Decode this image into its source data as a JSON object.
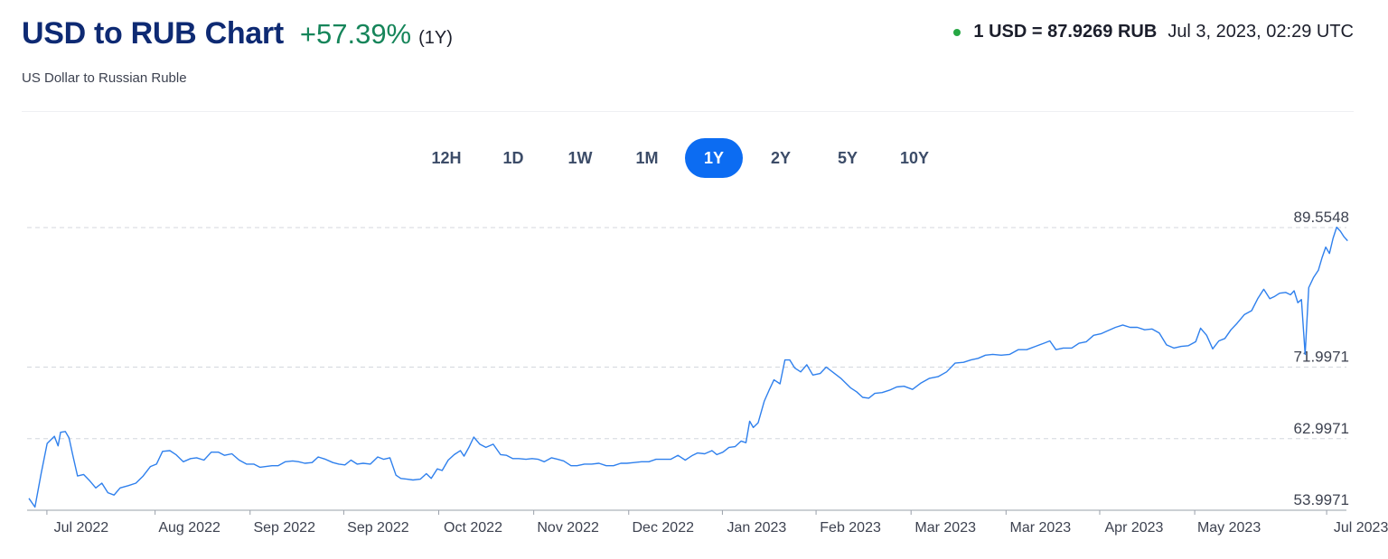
{
  "header": {
    "title": "USD to RUB Chart",
    "change": "+57.39%",
    "period": "(1Y)",
    "subtitle": "US Dollar to Russian Ruble",
    "rate_value": "1 USD = 87.9269 RUB",
    "rate_time": "Jul 3, 2023, 02:29 UTC"
  },
  "ranges": [
    {
      "label": "12H",
      "active": false
    },
    {
      "label": "1D",
      "active": false
    },
    {
      "label": "1W",
      "active": false
    },
    {
      "label": "1M",
      "active": false
    },
    {
      "label": "1Y",
      "active": true
    },
    {
      "label": "2Y",
      "active": false
    },
    {
      "label": "5Y",
      "active": false
    },
    {
      "label": "10Y",
      "active": false
    }
  ],
  "colors": {
    "title": "#0e2a73",
    "positive": "#16855a",
    "live_dot": "#26a744",
    "accent": "#0c6cf2",
    "line": "#2f80ed",
    "grid": "#d4d7dd"
  },
  "chart_data": {
    "type": "line",
    "title": "",
    "xlabel": "",
    "ylabel": "",
    "grid": true,
    "y_tick_labels": [
      "89.5548",
      "71.9971",
      "62.9971",
      "53.9971"
    ],
    "y_ticks": [
      89.5548,
      71.9971,
      62.9971,
      53.9971
    ],
    "ylim": [
      53.9971,
      89.5548
    ],
    "x_tick_labels": [
      "Jul 2022",
      "Aug 2022",
      "Sep 2022",
      "Sep 2022",
      "Oct 2022",
      "Nov 2022",
      "Dec 2022",
      "Jan 2023",
      "Feb 2023",
      "Mar 2023",
      "Mar 2023",
      "Apr 2023",
      "May 2023",
      "Jul 2023"
    ],
    "x_tick_positions": [
      0.015,
      0.097,
      0.169,
      0.24,
      0.312,
      0.384,
      0.456,
      0.527,
      0.598,
      0.67,
      0.742,
      0.813,
      0.885,
      0.985
    ],
    "series": [
      {
        "values": [
          [
            0.0,
            55.5
          ],
          [
            0.005,
            54.4
          ],
          [
            0.01,
            58.6
          ],
          [
            0.015,
            62.4
          ],
          [
            0.021,
            63.3
          ],
          [
            0.024,
            62.1
          ],
          [
            0.026,
            63.8
          ],
          [
            0.03,
            63.9
          ],
          [
            0.033,
            63.1
          ],
          [
            0.036,
            61.0
          ],
          [
            0.04,
            58.3
          ],
          [
            0.045,
            58.5
          ],
          [
            0.05,
            57.7
          ],
          [
            0.055,
            56.8
          ],
          [
            0.06,
            57.4
          ],
          [
            0.065,
            56.2
          ],
          [
            0.07,
            55.9
          ],
          [
            0.075,
            56.8
          ],
          [
            0.082,
            57.1
          ],
          [
            0.088,
            57.4
          ],
          [
            0.094,
            58.3
          ],
          [
            0.1,
            59.5
          ],
          [
            0.105,
            59.8
          ],
          [
            0.11,
            61.4
          ],
          [
            0.116,
            61.5
          ],
          [
            0.121,
            61.0
          ],
          [
            0.127,
            60.1
          ],
          [
            0.133,
            60.5
          ],
          [
            0.138,
            60.6
          ],
          [
            0.144,
            60.3
          ],
          [
            0.15,
            61.3
          ],
          [
            0.156,
            61.3
          ],
          [
            0.161,
            60.9
          ],
          [
            0.167,
            61.1
          ],
          [
            0.173,
            60.3
          ],
          [
            0.179,
            59.8
          ],
          [
            0.185,
            59.8
          ],
          [
            0.19,
            59.4
          ],
          [
            0.195,
            59.5
          ],
          [
            0.2,
            59.6
          ],
          [
            0.205,
            59.6
          ],
          [
            0.211,
            60.1
          ],
          [
            0.217,
            60.2
          ],
          [
            0.222,
            60.1
          ],
          [
            0.227,
            59.9
          ],
          [
            0.233,
            60.0
          ],
          [
            0.238,
            60.7
          ],
          [
            0.244,
            60.4
          ],
          [
            0.25,
            60.0
          ],
          [
            0.255,
            59.8
          ],
          [
            0.26,
            59.7
          ],
          [
            0.265,
            60.3
          ],
          [
            0.27,
            59.8
          ],
          [
            0.275,
            59.9
          ],
          [
            0.281,
            59.8
          ],
          [
            0.287,
            60.7
          ],
          [
            0.292,
            60.4
          ],
          [
            0.297,
            60.6
          ],
          [
            0.302,
            58.4
          ],
          [
            0.306,
            58.0
          ],
          [
            0.311,
            57.9
          ],
          [
            0.316,
            57.8
          ],
          [
            0.322,
            57.9
          ],
          [
            0.327,
            58.6
          ],
          [
            0.331,
            58.0
          ],
          [
            0.336,
            59.2
          ],
          [
            0.34,
            59.0
          ],
          [
            0.345,
            60.3
          ],
          [
            0.35,
            61.0
          ],
          [
            0.355,
            61.5
          ],
          [
            0.358,
            60.8
          ],
          [
            0.362,
            61.9
          ],
          [
            0.366,
            63.2
          ],
          [
            0.371,
            62.3
          ],
          [
            0.376,
            61.9
          ],
          [
            0.382,
            62.3
          ],
          [
            0.388,
            61.0
          ],
          [
            0.393,
            60.9
          ],
          [
            0.398,
            60.5
          ],
          [
            0.403,
            60.5
          ],
          [
            0.409,
            60.4
          ],
          [
            0.414,
            60.5
          ],
          [
            0.419,
            60.4
          ],
          [
            0.424,
            60.1
          ],
          [
            0.43,
            60.6
          ],
          [
            0.435,
            60.4
          ],
          [
            0.44,
            60.2
          ],
          [
            0.446,
            59.6
          ],
          [
            0.451,
            59.6
          ],
          [
            0.457,
            59.8
          ],
          [
            0.463,
            59.8
          ],
          [
            0.469,
            59.9
          ],
          [
            0.475,
            59.6
          ],
          [
            0.481,
            59.6
          ],
          [
            0.487,
            59.9
          ],
          [
            0.492,
            59.9
          ],
          [
            0.498,
            60.0
          ],
          [
            0.504,
            60.1
          ],
          [
            0.51,
            60.1
          ],
          [
            0.516,
            60.4
          ],
          [
            0.522,
            60.4
          ],
          [
            0.528,
            60.4
          ],
          [
            0.534,
            60.9
          ],
          [
            0.54,
            60.3
          ],
          [
            0.546,
            60.9
          ],
          [
            0.55,
            61.2
          ],
          [
            0.556,
            61.1
          ],
          [
            0.562,
            61.5
          ],
          [
            0.566,
            61.0
          ],
          [
            0.571,
            61.3
          ],
          [
            0.576,
            61.9
          ],
          [
            0.581,
            62.0
          ],
          [
            0.586,
            62.7
          ],
          [
            0.59,
            62.5
          ],
          [
            0.593,
            65.2
          ],
          [
            0.596,
            64.4
          ],
          [
            0.6,
            65.0
          ],
          [
            0.605,
            67.7
          ],
          [
            0.609,
            69.1
          ],
          [
            0.613,
            70.4
          ],
          [
            0.618,
            69.9
          ],
          [
            0.622,
            72.9
          ],
          [
            0.626,
            72.9
          ],
          [
            0.63,
            71.9
          ],
          [
            0.635,
            71.4
          ],
          [
            0.64,
            72.3
          ],
          [
            0.645,
            71.0
          ],
          [
            0.651,
            71.2
          ],
          [
            0.656,
            72.0
          ],
          [
            0.662,
            71.3
          ],
          [
            0.668,
            70.6
          ],
          [
            0.672,
            70.0
          ],
          [
            0.676,
            69.4
          ],
          [
            0.681,
            68.9
          ],
          [
            0.686,
            68.2
          ],
          [
            0.691,
            68.1
          ],
          [
            0.696,
            68.7
          ],
          [
            0.702,
            68.8
          ],
          [
            0.708,
            69.1
          ],
          [
            0.714,
            69.5
          ],
          [
            0.72,
            69.6
          ],
          [
            0.727,
            69.2
          ],
          [
            0.734,
            70.0
          ],
          [
            0.741,
            70.6
          ],
          [
            0.748,
            70.8
          ],
          [
            0.755,
            71.4
          ],
          [
            0.762,
            72.5
          ],
          [
            0.769,
            72.6
          ],
          [
            0.775,
            72.9
          ],
          [
            0.781,
            73.1
          ],
          [
            0.787,
            73.5
          ],
          [
            0.793,
            73.6
          ],
          [
            0.8,
            73.5
          ],
          [
            0.807,
            73.6
          ],
          [
            0.814,
            74.2
          ],
          [
            0.821,
            74.2
          ],
          [
            0.828,
            74.6
          ],
          [
            0.835,
            75.0
          ],
          [
            0.84,
            75.3
          ],
          [
            0.845,
            74.2
          ],
          [
            0.851,
            74.4
          ],
          [
            0.858,
            74.4
          ],
          [
            0.864,
            75.0
          ],
          [
            0.87,
            75.2
          ],
          [
            0.876,
            76.0
          ],
          [
            0.882,
            76.2
          ],
          [
            0.888,
            76.6
          ],
          [
            0.894,
            77.0
          ],
          [
            0.9,
            77.3
          ],
          [
            0.906,
            77.0
          ],
          [
            0.912,
            77.0
          ],
          [
            0.918,
            76.7
          ],
          [
            0.924,
            76.8
          ],
          [
            0.93,
            76.3
          ],
          [
            0.936,
            74.8
          ],
          [
            0.942,
            74.4
          ],
          [
            0.948,
            74.6
          ],
          [
            0.954,
            74.7
          ],
          [
            0.96,
            75.2
          ],
          [
            0.964,
            76.9
          ],
          [
            0.969,
            76.0
          ],
          [
            0.974,
            74.3
          ],
          [
            0.979,
            75.3
          ],
          [
            0.984,
            75.6
          ],
          [
            0.989,
            76.7
          ],
          [
            0.994,
            77.5
          ],
          [
            1.0,
            78.6
          ],
          [
            1.006,
            79.1
          ],
          [
            1.011,
            80.6
          ],
          [
            1.016,
            81.8
          ],
          [
            1.021,
            80.6
          ],
          [
            1.025,
            80.9
          ],
          [
            1.029,
            81.3
          ],
          [
            1.034,
            81.4
          ],
          [
            1.038,
            81.1
          ],
          [
            1.041,
            81.6
          ],
          [
            1.044,
            80.1
          ],
          [
            1.047,
            80.5
          ],
          [
            1.05,
            73.6
          ],
          [
            1.053,
            82.0
          ],
          [
            1.057,
            83.3
          ],
          [
            1.061,
            84.2
          ],
          [
            1.064,
            85.8
          ],
          [
            1.067,
            87.1
          ],
          [
            1.07,
            86.3
          ],
          [
            1.073,
            88.2
          ],
          [
            1.076,
            89.6
          ],
          [
            1.079,
            89.1
          ],
          [
            1.082,
            88.4
          ],
          [
            1.085,
            87.9
          ]
        ]
      }
    ]
  }
}
